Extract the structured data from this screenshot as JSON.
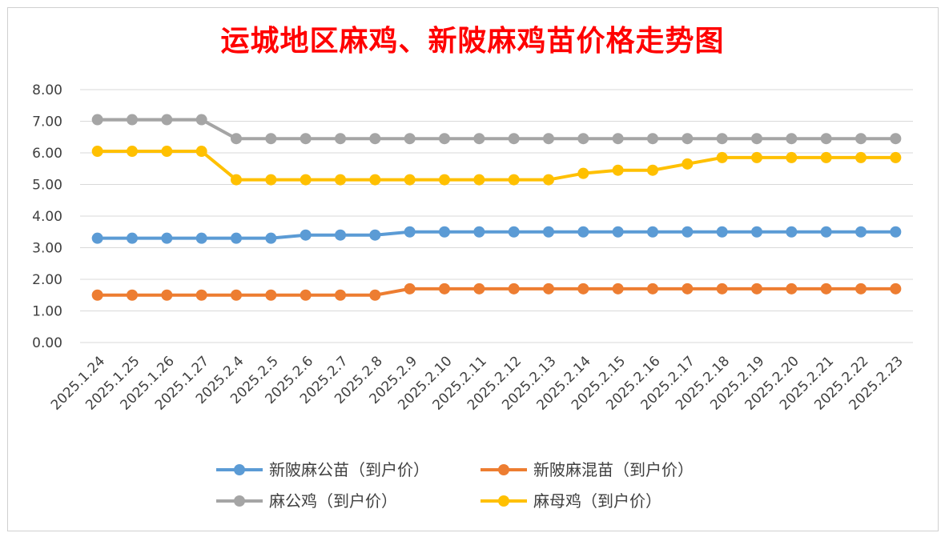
{
  "chart_data": {
    "type": "line",
    "title": "运城地区麻鸡、新陂麻鸡苗价格走势图",
    "xlabel": "",
    "ylabel": "",
    "ylim": [
      0,
      8
    ],
    "yticks": [
      "0.00",
      "1.00",
      "2.00",
      "3.00",
      "4.00",
      "5.00",
      "6.00",
      "7.00",
      "8.00"
    ],
    "grid": true,
    "legend_position": "bottom",
    "x": [
      "2025.1.24",
      "2025.1.25",
      "2025.1.26",
      "2025.1.27",
      "2025.2.4",
      "2025.2.5",
      "2025.2.6",
      "2025.2.7",
      "2025.2.8",
      "2025.2.9",
      "2025.2.10",
      "2025.2.11",
      "2025.2.12",
      "2025.2.13",
      "2025.2.14",
      "2025.2.15",
      "2025.2.16",
      "2025.2.17",
      "2025.2.18",
      "2025.2.19",
      "2025.2.20",
      "2025.2.21",
      "2025.2.22",
      "2025.2.23"
    ],
    "series": [
      {
        "name": "新陂麻公苗（到户价）",
        "color": "#5b9bd5",
        "values": [
          3.3,
          3.3,
          3.3,
          3.3,
          3.3,
          3.3,
          3.4,
          3.4,
          3.4,
          3.5,
          3.5,
          3.5,
          3.5,
          3.5,
          3.5,
          3.5,
          3.5,
          3.5,
          3.5,
          3.5,
          3.5,
          3.5,
          3.5,
          3.5
        ]
      },
      {
        "name": "新陂麻混苗（到户价）",
        "color": "#ed7d31",
        "values": [
          1.5,
          1.5,
          1.5,
          1.5,
          1.5,
          1.5,
          1.5,
          1.5,
          1.5,
          1.7,
          1.7,
          1.7,
          1.7,
          1.7,
          1.7,
          1.7,
          1.7,
          1.7,
          1.7,
          1.7,
          1.7,
          1.7,
          1.7,
          1.7
        ]
      },
      {
        "name": "麻公鸡（到户价）",
        "color": "#a5a5a5",
        "values": [
          7.05,
          7.05,
          7.05,
          7.05,
          6.45,
          6.45,
          6.45,
          6.45,
          6.45,
          6.45,
          6.45,
          6.45,
          6.45,
          6.45,
          6.45,
          6.45,
          6.45,
          6.45,
          6.45,
          6.45,
          6.45,
          6.45,
          6.45,
          6.45
        ]
      },
      {
        "name": "麻母鸡（到户价）",
        "color": "#ffc000",
        "values": [
          6.05,
          6.05,
          6.05,
          6.05,
          5.15,
          5.15,
          5.15,
          5.15,
          5.15,
          5.15,
          5.15,
          5.15,
          5.15,
          5.15,
          5.35,
          5.45,
          5.45,
          5.65,
          5.85,
          5.85,
          5.85,
          5.85,
          5.85,
          5.85
        ]
      }
    ]
  }
}
